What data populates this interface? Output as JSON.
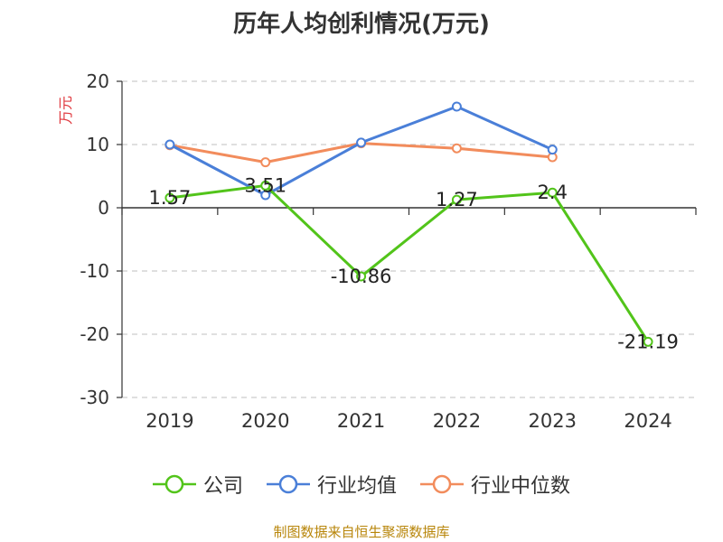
{
  "footer": "制图数据来自恒生聚源数据库",
  "chart_data": {
    "type": "line",
    "title": "历年人均创利情况(万元)",
    "ylabel": "万元",
    "xlabel": "",
    "categories": [
      "2019",
      "2020",
      "2021",
      "2022",
      "2023",
      "2024"
    ],
    "ylim": [
      -30,
      20
    ],
    "yticks": [
      20,
      10,
      0,
      -10,
      -20,
      -30
    ],
    "grid": true,
    "legend_position": "bottom",
    "series": [
      {
        "name": "公司",
        "color": "#52c41a",
        "values": [
          1.57,
          3.51,
          -10.86,
          1.27,
          2.4,
          -21.19
        ],
        "labels": [
          "1.57",
          "3.51",
          "-10.86",
          "1.27",
          "2.4",
          "-21.19"
        ]
      },
      {
        "name": "行业均值",
        "color": "#4a7fd8",
        "values": [
          10.0,
          2.0,
          10.3,
          16.0,
          9.2,
          null
        ]
      },
      {
        "name": "行业中位数",
        "color": "#f28c5c",
        "values": [
          9.9,
          7.2,
          10.2,
          9.4,
          8.0,
          null
        ]
      }
    ]
  }
}
